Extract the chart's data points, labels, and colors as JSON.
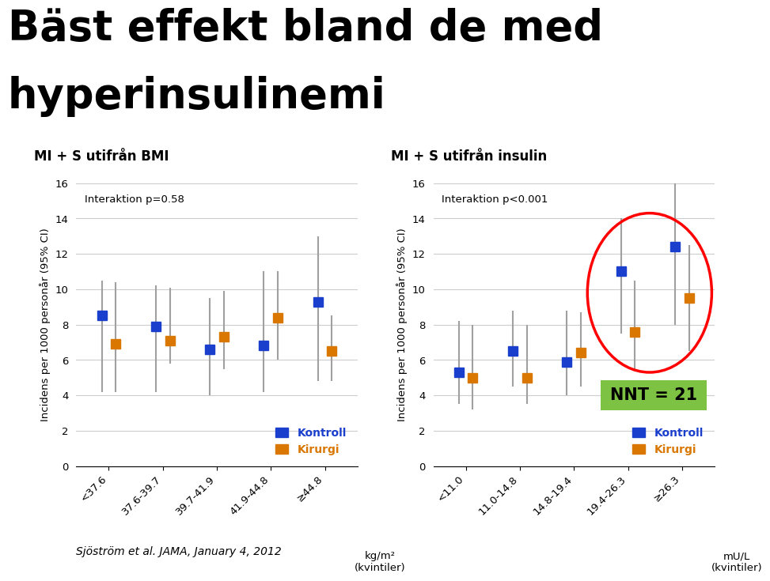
{
  "title_line1": "Bäst effekt bland de med",
  "title_line2": "hyperinsulinemi",
  "title_fontsize": 38,
  "title_fontweight": "bold",
  "subtitle_bottom": "Sjöström et al. JAMA, January 4, 2012",
  "panel1": {
    "title": "MI + S utifrån BMI",
    "interaction": "Interaktion p=0.58",
    "xlabel": "kg/m²\n(kvintiler)",
    "ylabel": "Incidens per 1000 personår (95% CI)",
    "categories": [
      "<37.6",
      "37.6-39.7",
      "39.7-41.9",
      "41.9-44.8",
      "≥44.8"
    ],
    "kontroll_y": [
      8.5,
      7.9,
      6.6,
      6.8,
      9.3
    ],
    "kontroll_lo": [
      4.2,
      4.2,
      4.0,
      4.2,
      4.8
    ],
    "kontroll_hi": [
      10.5,
      10.2,
      9.5,
      11.0,
      13.0
    ],
    "kirurgi_y": [
      6.9,
      7.1,
      7.3,
      8.4,
      6.5
    ],
    "kirurgi_lo": [
      4.2,
      5.8,
      5.5,
      6.0,
      4.8
    ],
    "kirurgi_hi": [
      10.4,
      10.1,
      9.9,
      11.0,
      8.5
    ],
    "ylim": [
      0,
      16
    ],
    "yticks": [
      0,
      2,
      4,
      6,
      8,
      10,
      12,
      14,
      16
    ]
  },
  "panel2": {
    "title": "MI + S utifrån insulin",
    "interaction": "Interaktion p<0.001",
    "xlabel": "mU/L\n(kvintiler)",
    "ylabel": "Incidens per 1000 personår (95% CI)",
    "categories": [
      "<11.0",
      "11.0-14.8",
      "14.8-19.4",
      "19.4-26.3",
      "≥26.3"
    ],
    "kontroll_y": [
      5.3,
      6.5,
      5.9,
      11.0,
      12.4
    ],
    "kontroll_lo": [
      3.5,
      4.5,
      4.0,
      7.5,
      8.0
    ],
    "kontroll_hi": [
      8.2,
      8.8,
      8.8,
      14.0,
      16.5
    ],
    "kirurgi_y": [
      5.0,
      5.0,
      6.4,
      7.6,
      9.5
    ],
    "kirurgi_lo": [
      3.2,
      3.5,
      4.5,
      5.5,
      6.5
    ],
    "kirurgi_hi": [
      8.0,
      8.0,
      8.7,
      10.5,
      12.5
    ],
    "ylim": [
      0,
      16
    ],
    "yticks": [
      0,
      2,
      4,
      6,
      8,
      10,
      12,
      14,
      16
    ],
    "nnt_text": "NNT = 21",
    "nnt_box_color": "#7dc242"
  },
  "blue_color": "#1a3fcc",
  "orange_color": "#d97700",
  "gray_ci_color": "#a0a0a0",
  "background_color": "#ffffff",
  "marker_size": 9,
  "grid_color": "#cccccc"
}
